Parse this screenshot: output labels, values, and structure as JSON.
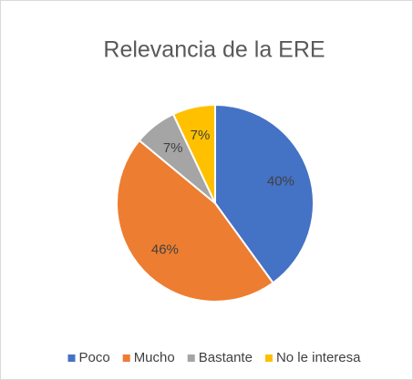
{
  "chart_data": {
    "type": "pie",
    "title": "Relevancia de la ERE",
    "categories": [
      "Poco",
      "Mucho",
      "Bastante",
      "No le interesa"
    ],
    "values": [
      40,
      46,
      7,
      7
    ],
    "value_labels": [
      "40%",
      "46%",
      "7%",
      "7%"
    ],
    "colors": [
      "#4472c4",
      "#ed7d31",
      "#a5a5a5",
      "#ffc000"
    ],
    "legend": "bottom"
  }
}
